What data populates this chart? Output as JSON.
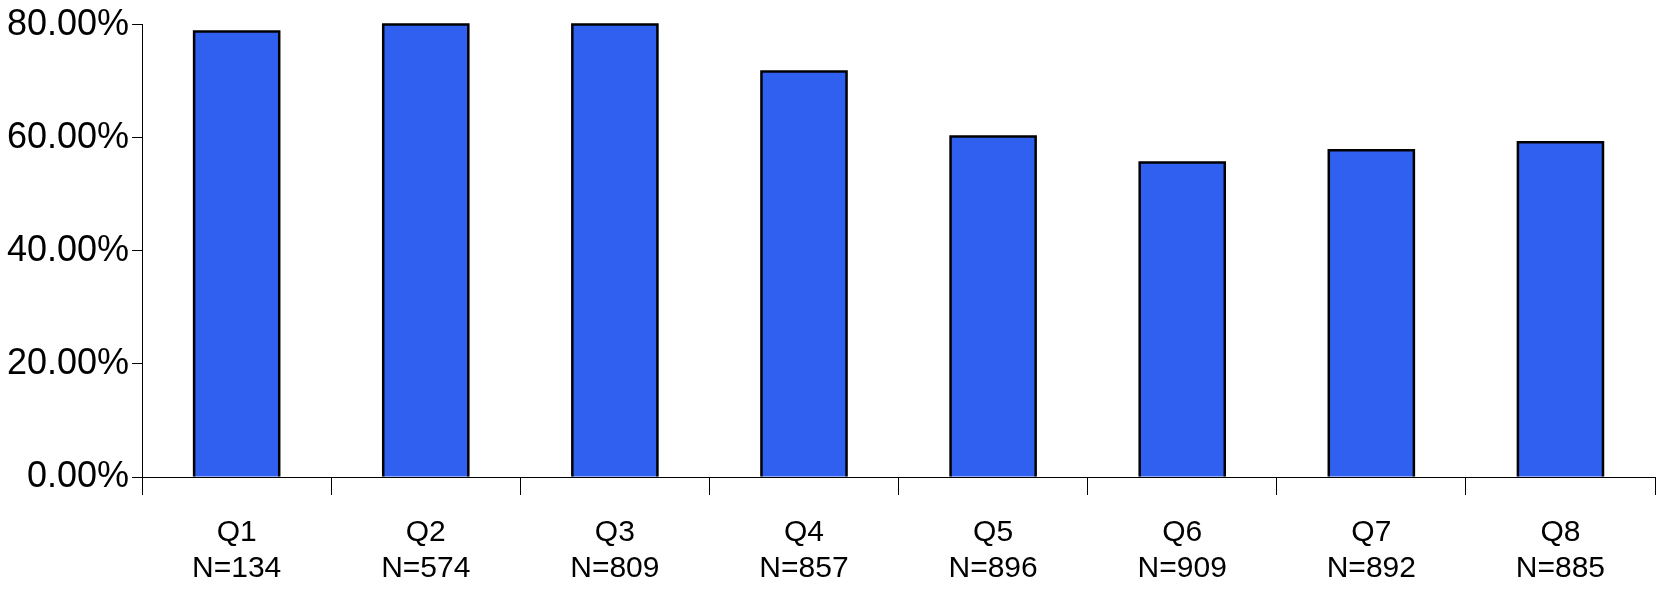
{
  "chart_data": {
    "type": "bar",
    "categories": [
      "Q1\nN=134",
      "Q2\nN=574",
      "Q3\nN=809",
      "Q4\nN=857",
      "Q5\nN=896",
      "Q6\nN=909",
      "Q7\nN=892",
      "Q8\nN=885"
    ],
    "values": [
      78.8,
      80,
      80,
      71.7,
      60.2,
      55.6,
      57.8,
      59.2
    ],
    "color": "#3060f0",
    "ylim": [
      0,
      80
    ],
    "yticks": [
      {
        "value": 0,
        "label": "0.00%"
      },
      {
        "value": 20,
        "label": "20.00%"
      },
      {
        "value": 40,
        "label": "40.00%"
      },
      {
        "value": 60,
        "label": "60.00%"
      },
      {
        "value": 80,
        "label": "80.00%"
      }
    ],
    "grid": false,
    "legend": false
  }
}
